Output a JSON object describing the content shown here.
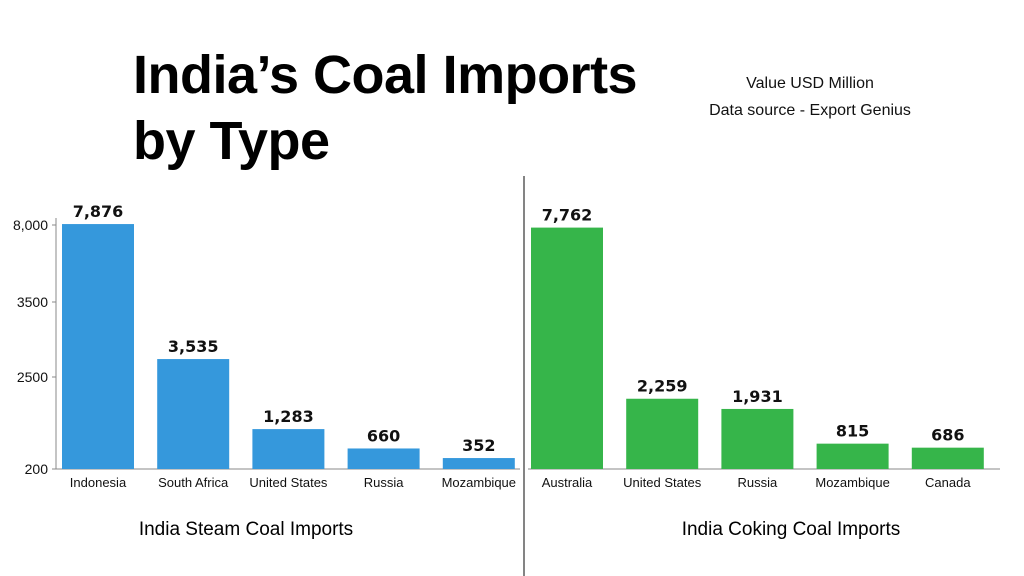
{
  "title_lines": [
    "India’s Coal Imports",
    "by Type"
  ],
  "subtitle_lines": [
    "Value USD Million",
    "Data source - Export Genius"
  ],
  "chart_data": [
    {
      "type": "bar",
      "title": "India Steam Coal Imports",
      "categories": [
        "Indonesia",
        "South Africa",
        "United States",
        "Russia",
        "Mozambique"
      ],
      "values": [
        7876,
        3535,
        1283,
        660,
        352
      ],
      "value_labels": [
        "7,876",
        "3,535",
        "1,283",
        "660",
        "352"
      ],
      "color": "#3598dc",
      "y_ticks": [
        {
          "value": 200,
          "label": "200"
        },
        {
          "value": 2500,
          "label": "2500"
        },
        {
          "value": 3500,
          "label": "3500"
        },
        {
          "value": 8000,
          "label": "8,000"
        }
      ]
    },
    {
      "type": "bar",
      "title": "India Coking Coal Imports",
      "categories": [
        "Australia",
        "United States",
        "Russia",
        "Mozambique",
        "Canada"
      ],
      "values": [
        7762,
        2259,
        1931,
        815,
        686
      ],
      "value_labels": [
        "7,762",
        "2,259",
        "1,931",
        "815",
        "686"
      ],
      "color": "#36b54a",
      "y_ticks": []
    }
  ]
}
